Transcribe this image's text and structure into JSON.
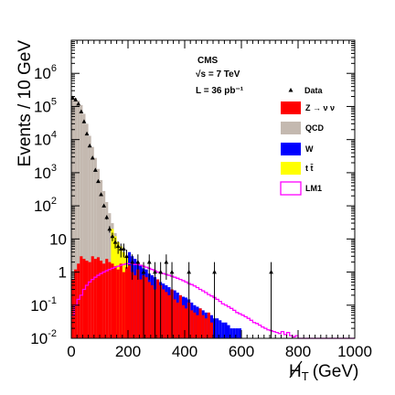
{
  "chart_data": {
    "type": "histogram",
    "xlabel_prefix": "H",
    "xlabel_sub": "T",
    "xlabel_unit": "(GeV)",
    "ylabel": "Events / 10 GeV",
    "x_range": [
      0,
      1000
    ],
    "y_range": [
      0.01,
      10000000
    ],
    "y_scale": "log",
    "bin_width": 10,
    "x_tick_labels": [
      "0",
      "200",
      "400",
      "600",
      "800",
      "1000"
    ],
    "y_tick_labels": [
      {
        "base": "10",
        "exp": "-2"
      },
      {
        "base": "10",
        "exp": "-1"
      },
      {
        "base": "1",
        "exp": ""
      },
      {
        "base": "10",
        "exp": ""
      },
      {
        "base": "10",
        "exp": "2"
      },
      {
        "base": "10",
        "exp": "3"
      },
      {
        "base": "10",
        "exp": "4"
      },
      {
        "base": "10",
        "exp": "5"
      },
      {
        "base": "10",
        "exp": "6"
      }
    ],
    "info": {
      "experiment": "CMS",
      "energy": "√s = 7 TeV",
      "lumi": "L = 36 pb⁻¹"
    },
    "legend": [
      {
        "label": "Data",
        "kind": "marker"
      },
      {
        "label": "Z → ν ν",
        "kind": "fill",
        "color": "#ff0000"
      },
      {
        "label": "QCD",
        "kind": "fill",
        "color": "#c4b9b0"
      },
      {
        "label": "W",
        "kind": "fill",
        "color": "#0000ff"
      },
      {
        "label": "t t̄",
        "kind": "fill",
        "color": "#ffff00"
      },
      {
        "label": "LM1",
        "kind": "line",
        "color": "#ff00ff"
      }
    ],
    "colors": {
      "znn": "#ff0000",
      "qcd": "#c4b9b0",
      "w": "#0000ff",
      "tt": "#ffff00",
      "lm1": "#ff00ff"
    },
    "series": [
      {
        "name": "QCD",
        "key": "qcd",
        "bin_lefts": [
          0,
          10,
          20,
          30,
          40,
          50,
          60,
          70,
          80,
          90,
          100,
          110,
          120,
          130,
          140,
          150,
          160,
          170,
          180,
          190,
          200,
          210,
          220,
          230,
          240,
          250,
          260,
          270,
          280,
          290
        ],
        "values": [
          200000,
          180000,
          150000,
          110000,
          60000,
          30000,
          13000,
          6000,
          2800,
          1300,
          600,
          280,
          130,
          60,
          30,
          15,
          8,
          4,
          2,
          1,
          0.5,
          0.3,
          0.2,
          0.1,
          0.05,
          0.03,
          0.02,
          0.01,
          0.01,
          0.01
        ]
      },
      {
        "name": "Z → ν ν",
        "key": "znn",
        "bin_lefts": [
          0,
          10,
          20,
          30,
          40,
          50,
          60,
          70,
          80,
          90,
          100,
          110,
          120,
          130,
          140,
          150,
          160,
          170,
          180,
          190,
          200,
          210,
          220,
          230,
          240,
          250,
          260,
          270,
          280,
          290,
          300,
          310,
          320,
          330,
          340,
          350,
          360,
          370,
          380,
          390,
          400,
          410,
          420,
          430,
          440,
          450,
          460,
          470,
          480,
          490
        ],
        "values": [
          0.6,
          1.2,
          1.8,
          3.0,
          2.5,
          2.2,
          2.0,
          3.0,
          2.5,
          2.8,
          2.2,
          1.8,
          2.5,
          2.0,
          1.8,
          1.5,
          1.2,
          1.8,
          1.0,
          1.4,
          1.6,
          1.0,
          0.8,
          1.2,
          0.6,
          0.8,
          0.7,
          0.5,
          0.4,
          0.3,
          0.6,
          0.4,
          0.3,
          0.25,
          0.2,
          0.3,
          0.15,
          0.12,
          0.2,
          0.1,
          0.08,
          0.12,
          0.07,
          0.06,
          0.05,
          0.08,
          0.05,
          0.04,
          0.06,
          0.03
        ]
      },
      {
        "name": "W",
        "key": "w",
        "bin_lefts": [
          200,
          210,
          220,
          230,
          240,
          250,
          260,
          270,
          280,
          290,
          300,
          310,
          320,
          330,
          340,
          350,
          360,
          370,
          380,
          390,
          400,
          410,
          420,
          430,
          440,
          450,
          460,
          470,
          480,
          490,
          500,
          510,
          520,
          530,
          540,
          550,
          560,
          570,
          580,
          590
        ],
        "values": [
          4,
          3,
          2.5,
          2,
          1.6,
          1.3,
          1.2,
          0.9,
          0.8,
          0.7,
          0.6,
          0.5,
          0.45,
          0.4,
          0.35,
          0.3,
          0.28,
          0.24,
          0.2,
          0.18,
          0.17,
          0.15,
          0.12,
          0.1,
          0.09,
          0.08,
          0.07,
          0.06,
          0.05,
          0.05,
          0.04,
          0.04,
          0.035,
          0.03,
          0.03,
          0.025,
          0.02,
          0.02,
          0.02,
          0.02
        ]
      },
      {
        "name": "t t̄",
        "key": "tt",
        "bin_lefts": [
          140,
          150,
          160,
          170,
          180,
          190,
          200,
          210,
          220,
          230,
          240,
          250,
          260,
          270,
          280,
          290,
          300,
          310,
          320,
          330,
          340,
          350,
          360,
          370,
          380,
          390,
          400
        ],
        "values": [
          20,
          12,
          8,
          6,
          4,
          3,
          2,
          1.5,
          1.2,
          1,
          0.8,
          0.6,
          0.5,
          0.4,
          0.35,
          0.3,
          0.25,
          0.2,
          0.18,
          0.15,
          0.12,
          0.1,
          0.08,
          0.07,
          0.06,
          0.05,
          0.04
        ]
      },
      {
        "name": "LM1",
        "key": "lm1",
        "bin_lefts": [
          0,
          10,
          20,
          30,
          40,
          50,
          60,
          70,
          80,
          90,
          100,
          110,
          120,
          130,
          140,
          150,
          160,
          170,
          180,
          190,
          200,
          210,
          220,
          230,
          240,
          250,
          260,
          270,
          280,
          290,
          300,
          310,
          320,
          330,
          340,
          350,
          360,
          370,
          380,
          390,
          400,
          410,
          420,
          430,
          440,
          450,
          460,
          470,
          480,
          490,
          500,
          510,
          520,
          530,
          540,
          550,
          560,
          570,
          580,
          590,
          600,
          610,
          620,
          630,
          640,
          650,
          660,
          670,
          680,
          690,
          700,
          710,
          720,
          730,
          740,
          750,
          760,
          770,
          780,
          790,
          800,
          810,
          820,
          830,
          840,
          850,
          860,
          870,
          880,
          890,
          900,
          910,
          920,
          930,
          940,
          950,
          960,
          970,
          980,
          990
        ],
        "values": [
          0.05,
          0.1,
          0.15,
          0.2,
          0.3,
          0.4,
          0.5,
          0.6,
          0.7,
          0.8,
          0.9,
          1.0,
          1.1,
          1.2,
          1.3,
          1.4,
          1.5,
          1.6,
          1.7,
          1.8,
          1.8,
          1.8,
          1.7,
          1.7,
          1.6,
          1.5,
          1.4,
          1.3,
          1.2,
          1.1,
          1.0,
          0.95,
          0.9,
          0.85,
          0.8,
          0.75,
          0.7,
          0.65,
          0.6,
          0.55,
          0.5,
          0.45,
          0.42,
          0.38,
          0.34,
          0.3,
          0.27,
          0.24,
          0.21,
          0.19,
          0.17,
          0.15,
          0.13,
          0.11,
          0.1,
          0.09,
          0.08,
          0.07,
          0.06,
          0.055,
          0.05,
          0.045,
          0.04,
          0.035,
          0.03,
          0.028,
          0.025,
          0.022,
          0.02,
          0.018,
          0.017,
          0.016,
          0.015,
          0.014,
          0.016,
          0.013,
          0.015,
          0.012,
          0.011,
          0.012,
          0.01,
          0.01,
          0.01,
          0.01,
          0.01,
          0.01,
          0.01,
          0.01,
          0.01,
          0.01,
          0.01,
          0.01,
          0.01,
          0.01,
          0.01,
          0.01,
          0.01,
          0.01,
          0.01,
          0.01
        ]
      },
      {
        "name": "Data",
        "key": "data",
        "points": [
          {
            "x": 5,
            "y": 180000
          },
          {
            "x": 15,
            "y": 160000
          },
          {
            "x": 25,
            "y": 120000
          },
          {
            "x": 35,
            "y": 70000
          },
          {
            "x": 45,
            "y": 35000
          },
          {
            "x": 55,
            "y": 15000
          },
          {
            "x": 65,
            "y": 6500
          },
          {
            "x": 75,
            "y": 2800
          },
          {
            "x": 85,
            "y": 1200
          },
          {
            "x": 95,
            "y": 550
          },
          {
            "x": 105,
            "y": 220
          },
          {
            "x": 115,
            "y": 100
          },
          {
            "x": 125,
            "y": 45
          },
          {
            "x": 135,
            "y": 20
          },
          {
            "x": 145,
            "y": 12
          },
          {
            "x": 155,
            "y": 8
          },
          {
            "x": 165,
            "y": 6
          },
          {
            "x": 175,
            "y": 5
          },
          {
            "x": 185,
            "y": 5
          },
          {
            "x": 195,
            "y": 3
          },
          {
            "x": 215,
            "y": 2
          },
          {
            "x": 235,
            "y": 2
          },
          {
            "x": 255,
            "y": 1
          },
          {
            "x": 275,
            "y": 2
          },
          {
            "x": 295,
            "y": 1
          },
          {
            "x": 315,
            "y": 1
          },
          {
            "x": 335,
            "y": 2
          },
          {
            "x": 355,
            "y": 1
          },
          {
            "x": 415,
            "y": 1
          },
          {
            "x": 505,
            "y": 1
          },
          {
            "x": 705,
            "y": 1
          }
        ]
      }
    ]
  }
}
